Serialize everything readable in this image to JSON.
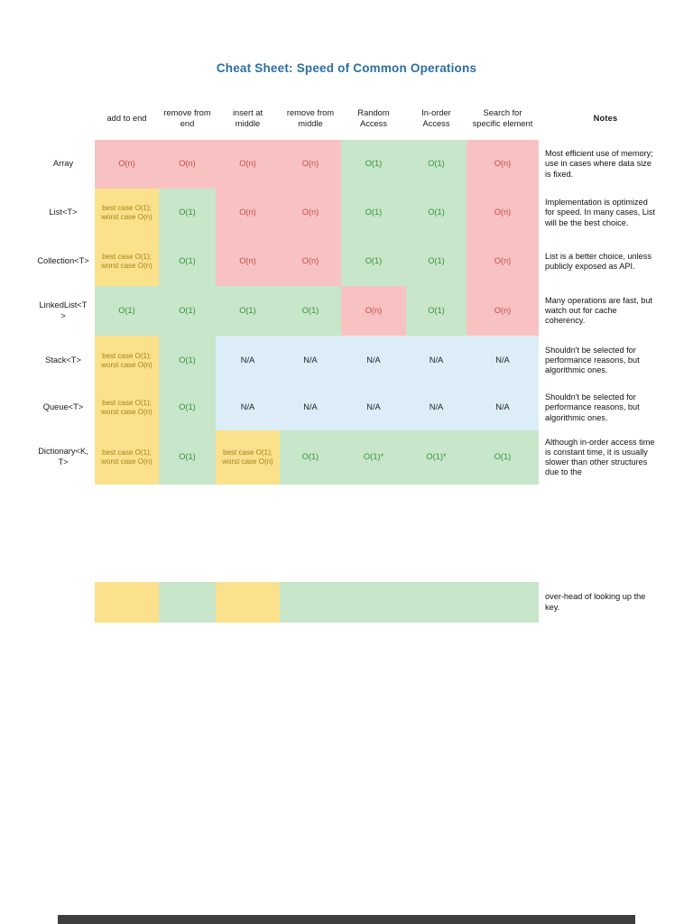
{
  "page": {
    "title": "Cheat Sheet: Speed of Common Operations"
  },
  "colors": {
    "title_blue": "#2b6f9f",
    "slow_bg": "#f9c2c2",
    "slow_text": "#c64a46",
    "fast_bg": "#c8e6c9",
    "fast_text": "#35913e",
    "bestcase_bg": "#fbe18b",
    "bestcase_text": "#a9801d",
    "na_bg": "#ddedf8"
  },
  "table": {
    "headers": [
      "add to end",
      "remove from end",
      "insert at middle",
      "remove from middle",
      "Random Access",
      "In-order Access",
      "Search for specific element",
      "Notes"
    ],
    "rows": [
      {
        "label": "Array",
        "cells": [
          "O(n)",
          "O(n)",
          "O(n)",
          "O(n)",
          "O(1)",
          "O(1)",
          "O(n)"
        ],
        "notes": "Most efficient use of memory; use in cases where data size is fixed."
      },
      {
        "label": "List<T>",
        "cells": [
          "best case O(1); worst case O(n)",
          "O(1)",
          "O(n)",
          "O(n)",
          "O(1)",
          "O(1)",
          "O(n)"
        ],
        "notes": "Implementation is optimized for speed. In many cases, List will be the best choice."
      },
      {
        "label": "Collection<T>",
        "cells": [
          "best case O(1); worst case O(n)",
          "O(1)",
          "O(n)",
          "O(n)",
          "O(1)",
          "O(1)",
          "O(n)"
        ],
        "notes": "List is a better choice, unless publicly exposed as API."
      },
      {
        "label": "LinkedList<T>",
        "cells": [
          "O(1)",
          "O(1)",
          "O(1)",
          "O(1)",
          "O(n)",
          "O(1)",
          "O(n)"
        ],
        "notes": "Many operations are fast, but watch out for cache coherency."
      },
      {
        "label": "Stack<T>",
        "cells": [
          "best case O(1); worst case O(n)",
          "O(1)",
          "N/A",
          "N/A",
          "N/A",
          "N/A",
          "N/A"
        ],
        "notes": "Shouldn't be selected for performance reasons, but algorithmic ones."
      },
      {
        "label": "Queue<T>",
        "cells": [
          "best case O(1); worst case O(n)",
          "O(1)",
          "N/A",
          "N/A",
          "N/A",
          "N/A",
          "N/A"
        ],
        "notes": "Shouldn't be selected for performance reasons, but algorithmic ones."
      },
      {
        "label": "Dictionary<K,T>",
        "cells": [
          "best case O(1); worst case O(n)",
          "O(1)",
          "best case O(1); worst case O(n)",
          "O(1)",
          "O(1)*",
          "O(1)*",
          "O(1)"
        ],
        "notes": "Although in-order access time is constant time, it is usually slower than other structures due to the"
      }
    ],
    "continuation": {
      "notes": "over-head of looking up the key."
    }
  }
}
